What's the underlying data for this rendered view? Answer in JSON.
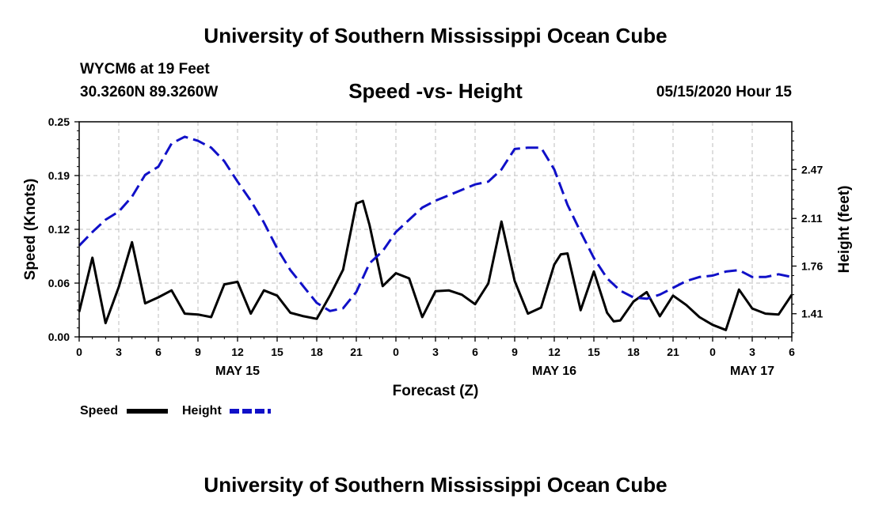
{
  "header": {
    "top_title": "University of Southern Mississippi Ocean Cube",
    "station": "WYCM6 at 19 Feet",
    "coords": "30.3260N 89.3260W",
    "subtitle": "Speed -vs- Height",
    "datetime": "05/15/2020 Hour 15"
  },
  "footer": {
    "bottom_title": "University of Southern Mississippi Ocean Cube"
  },
  "chart_data": {
    "type": "line",
    "title": "Speed -vs- Height",
    "xlabel": "Forecast (Z)",
    "ylabel_left": "Speed (Knots)",
    "ylabel_right": "Height (feet)",
    "x_range": [
      0,
      54
    ],
    "x_ticks": [
      {
        "x": 0,
        "label": "0"
      },
      {
        "x": 3,
        "label": "3"
      },
      {
        "x": 6,
        "label": "6"
      },
      {
        "x": 9,
        "label": "9"
      },
      {
        "x": 12,
        "label": "12"
      },
      {
        "x": 15,
        "label": "15"
      },
      {
        "x": 18,
        "label": "18"
      },
      {
        "x": 21,
        "label": "21"
      },
      {
        "x": 24,
        "label": "0"
      },
      {
        "x": 27,
        "label": "3"
      },
      {
        "x": 30,
        "label": "6"
      },
      {
        "x": 33,
        "label": "9"
      },
      {
        "x": 36,
        "label": "12"
      },
      {
        "x": 39,
        "label": "15"
      },
      {
        "x": 42,
        "label": "18"
      },
      {
        "x": 45,
        "label": "21"
      },
      {
        "x": 48,
        "label": "0"
      },
      {
        "x": 51,
        "label": "3"
      },
      {
        "x": 54,
        "label": "6"
      }
    ],
    "date_labels": [
      {
        "x": 12,
        "label": "MAY 15"
      },
      {
        "x": 36,
        "label": "MAY 16"
      },
      {
        "x": 51,
        "label": "MAY 17"
      }
    ],
    "y_left_range": [
      0,
      0.25
    ],
    "y_left_ticks": [
      {
        "v": 0.0,
        "label": "0.00"
      },
      {
        "v": 0.0625,
        "label": "0.06"
      },
      {
        "v": 0.125,
        "label": "0.12"
      },
      {
        "v": 0.1875,
        "label": "0.19"
      },
      {
        "v": 0.25,
        "label": "0.25"
      }
    ],
    "y_right_range": [
      1.24,
      2.82
    ],
    "y_right_ticks": [
      {
        "v": 1.41,
        "label": "1.41"
      },
      {
        "v": 1.76,
        "label": "1.76"
      },
      {
        "v": 2.11,
        "label": "2.11"
      },
      {
        "v": 2.47,
        "label": "2.47"
      }
    ],
    "grid": true,
    "series": [
      {
        "name": "Speed",
        "axis": "left",
        "color": "#000000",
        "dash": "solid",
        "x": [
          0,
          1,
          2,
          3,
          4,
          5,
          6,
          7,
          8,
          9,
          10,
          11,
          12,
          13,
          14,
          15,
          16,
          17,
          18,
          19,
          20,
          21,
          21.5,
          22,
          23,
          24,
          25,
          26,
          27,
          28,
          29,
          30,
          31,
          32,
          33,
          34,
          35,
          36,
          36.5,
          37,
          38,
          39,
          40,
          40.5,
          41,
          42,
          43,
          44,
          45,
          46,
          47,
          48,
          49,
          50,
          51,
          52,
          53,
          54
        ],
        "values": [
          0.029,
          0.092,
          0.016,
          0.058,
          0.11,
          0.039,
          0.046,
          0.054,
          0.027,
          0.026,
          0.023,
          0.061,
          0.064,
          0.027,
          0.054,
          0.048,
          0.028,
          0.024,
          0.021,
          0.048,
          0.078,
          0.155,
          0.158,
          0.13,
          0.059,
          0.074,
          0.068,
          0.023,
          0.053,
          0.054,
          0.049,
          0.038,
          0.062,
          0.134,
          0.065,
          0.027,
          0.034,
          0.084,
          0.096,
          0.097,
          0.031,
          0.076,
          0.028,
          0.018,
          0.019,
          0.041,
          0.052,
          0.024,
          0.048,
          0.037,
          0.023,
          0.014,
          0.008,
          0.055,
          0.033,
          0.027,
          0.026,
          0.049
        ]
      },
      {
        "name": "Height",
        "axis": "right",
        "color": "#1010c8",
        "dash": "dashed",
        "x": [
          0,
          1,
          2,
          3,
          4,
          5,
          6,
          7,
          8,
          9,
          10,
          11,
          12,
          13,
          14,
          15,
          16,
          17,
          18,
          19,
          20,
          21,
          22,
          23,
          24,
          25,
          26,
          27,
          28,
          29,
          30,
          31,
          32,
          33,
          34,
          35,
          36,
          37,
          38,
          39,
          40,
          41,
          42,
          43,
          44,
          45,
          46,
          47,
          48,
          49,
          50,
          51,
          52,
          53,
          54
        ],
        "values": [
          1.91,
          2.01,
          2.1,
          2.16,
          2.27,
          2.43,
          2.49,
          2.66,
          2.71,
          2.68,
          2.63,
          2.53,
          2.38,
          2.24,
          2.08,
          1.89,
          1.73,
          1.61,
          1.49,
          1.43,
          1.45,
          1.57,
          1.78,
          1.87,
          2.01,
          2.1,
          2.19,
          2.24,
          2.28,
          2.32,
          2.36,
          2.38,
          2.47,
          2.62,
          2.63,
          2.63,
          2.47,
          2.21,
          2.01,
          1.82,
          1.67,
          1.58,
          1.53,
          1.52,
          1.55,
          1.6,
          1.65,
          1.68,
          1.69,
          1.72,
          1.73,
          1.68,
          1.68,
          1.7,
          1.68
        ]
      }
    ],
    "legend": {
      "position": "bottom-left",
      "entries": [
        "Speed",
        "Height"
      ]
    }
  }
}
